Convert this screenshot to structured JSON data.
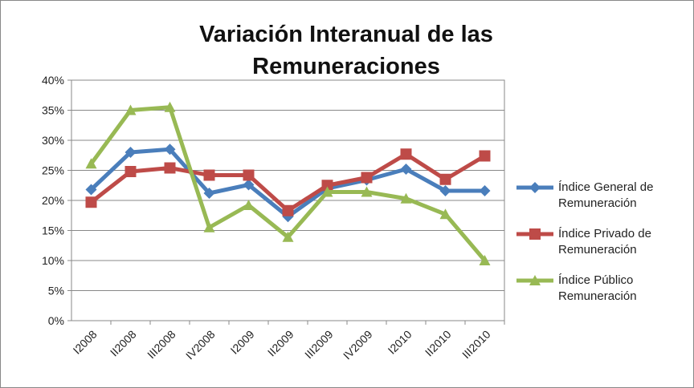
{
  "chart_data": {
    "type": "line",
    "title": "Variación Interanual de las Remuneraciones",
    "categories": [
      "I2008",
      "II2008",
      "III2008",
      "IV2008",
      "I2009",
      "II2009",
      "III2009",
      "IV2009",
      "I2010",
      "II2010",
      "III2010"
    ],
    "series": [
      {
        "name": "Índice General de Remuneración",
        "color": "#4a7ebb",
        "marker": "diamond",
        "values": [
          21.8,
          28,
          28.5,
          21.2,
          22.6,
          17.3,
          22,
          23.4,
          25.2,
          21.6,
          21.6
        ]
      },
      {
        "name": "Índice Privado de Remuneración",
        "color": "#be4b48",
        "marker": "square",
        "values": [
          19.7,
          24.8,
          25.4,
          24.2,
          24.2,
          18.3,
          22.5,
          23.8,
          27.7,
          23.5,
          27.4
        ]
      },
      {
        "name": "Índice Público Remuneración",
        "color": "#98b954",
        "marker": "triangle",
        "values": [
          26.1,
          35,
          35.5,
          15.5,
          19.2,
          13.9,
          21.4,
          21.4,
          20.3,
          17.7,
          10
        ]
      }
    ],
    "ylim": [
      0,
      40
    ],
    "yticks": [
      {
        "value": 0,
        "label": "0%"
      },
      {
        "value": 5,
        "label": "5%"
      },
      {
        "value": 10,
        "label": "10%"
      },
      {
        "value": 15,
        "label": "15%"
      },
      {
        "value": 20,
        "label": "20%"
      },
      {
        "value": 25,
        "label": "25%"
      },
      {
        "value": 30,
        "label": "30%"
      },
      {
        "value": 35,
        "label": "35%"
      },
      {
        "value": 40,
        "label": "40%"
      }
    ],
    "grid": true,
    "legend": "right"
  }
}
